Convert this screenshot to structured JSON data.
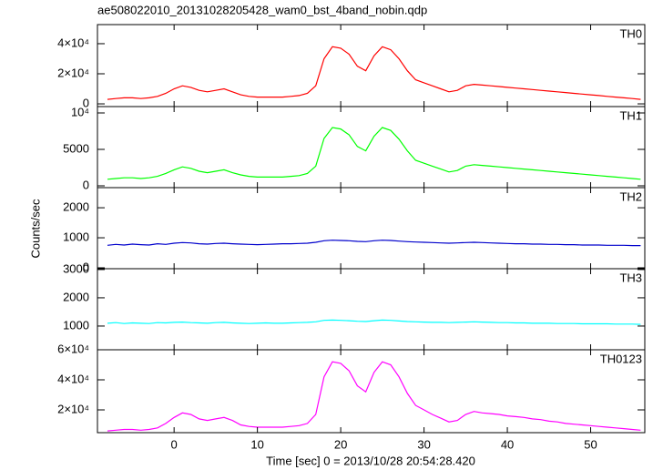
{
  "chart_data": {
    "type": "line",
    "title": "ae508022010_20131028205428_wam0_bst_4band_nobin.qdp",
    "xlabel": "Time [sec] 0 = 2013/10/28 20:54:28.420",
    "ylabel": "Counts/sec",
    "x": [
      -8,
      -7,
      -6,
      -5,
      -4,
      -3,
      -2,
      -1,
      0,
      1,
      2,
      3,
      4,
      5,
      6,
      7,
      8,
      9,
      10,
      11,
      12,
      13,
      14,
      15,
      16,
      17,
      18,
      19,
      20,
      21,
      22,
      23,
      24,
      25,
      26,
      27,
      28,
      29,
      30,
      31,
      32,
      33,
      34,
      35,
      36,
      37,
      38,
      39,
      40,
      41,
      42,
      43,
      44,
      45,
      46,
      47,
      48,
      49,
      50,
      51,
      52,
      53,
      54,
      55,
      56
    ],
    "xlim": [
      -9.2,
      56.5
    ],
    "xticks": [
      0,
      10,
      20,
      30,
      40,
      50
    ],
    "series": [
      {
        "name": "TH0",
        "color": "#ff0000",
        "values": [
          3000,
          3500,
          4000,
          4000,
          3500,
          4000,
          5000,
          7000,
          10000,
          12000,
          11000,
          9000,
          8000,
          9000,
          10000,
          8000,
          6000,
          5000,
          4500,
          4500,
          4500,
          4500,
          5000,
          5500,
          7000,
          12000,
          30000,
          38000,
          37000,
          33000,
          25000,
          22000,
          32000,
          38000,
          36000,
          30000,
          22000,
          16000,
          14000,
          12000,
          10000,
          8000,
          9000,
          12000,
          13000,
          12500,
          12000,
          11500,
          11000,
          10500,
          10000,
          9500,
          9000,
          8500,
          8000,
          7500,
          7000,
          6500,
          6000,
          5500,
          5000,
          4500,
          4000,
          3500,
          3000
        ],
        "ylim": [
          -1800,
          52700
        ],
        "yticks": [
          0,
          {
            "value": 20000,
            "label": "2×10⁴"
          },
          {
            "value": 40000,
            "label": "4×10⁴"
          }
        ]
      },
      {
        "name": "TH1",
        "color": "#00ff00",
        "values": [
          900,
          1000,
          1100,
          1100,
          1000,
          1100,
          1300,
          1700,
          2200,
          2600,
          2400,
          2000,
          1800,
          2000,
          2200,
          1800,
          1500,
          1300,
          1200,
          1200,
          1200,
          1200,
          1300,
          1400,
          1700,
          2700,
          6500,
          8000,
          7800,
          7000,
          5400,
          4800,
          6800,
          8000,
          7600,
          6400,
          4800,
          3500,
          3100,
          2700,
          2300,
          1900,
          2100,
          2700,
          2900,
          2800,
          2700,
          2600,
          2500,
          2400,
          2300,
          2200,
          2100,
          2000,
          1900,
          1800,
          1700,
          1600,
          1500,
          1400,
          1300,
          1200,
          1100,
          1000,
          900
        ],
        "ylim": [
          -250,
          10875
        ],
        "yticks": [
          0,
          5000,
          {
            "value": 10000,
            "label": "10⁴"
          }
        ]
      },
      {
        "name": "TH2",
        "color": "#0000cc",
        "values": [
          750,
          780,
          760,
          790,
          770,
          760,
          800,
          780,
          820,
          840,
          830,
          800,
          790,
          810,
          820,
          800,
          790,
          780,
          770,
          780,
          790,
          800,
          800,
          810,
          820,
          850,
          900,
          920,
          910,
          900,
          880,
          870,
          900,
          920,
          910,
          890,
          870,
          860,
          850,
          840,
          830,
          820,
          830,
          840,
          850,
          840,
          830,
          820,
          810,
          800,
          800,
          790,
          790,
          780,
          780,
          770,
          770,
          760,
          760,
          760,
          750,
          750,
          750,
          740,
          740
        ],
        "ylim": [
          -30,
          2670
        ],
        "yticks": [
          0,
          1000,
          2000
        ]
      },
      {
        "name": "TH3",
        "color": "#00ffff",
        "values": [
          1100,
          1120,
          1090,
          1110,
          1100,
          1090,
          1120,
          1110,
          1130,
          1140,
          1120,
          1110,
          1100,
          1120,
          1130,
          1110,
          1100,
          1090,
          1100,
          1110,
          1100,
          1100,
          1110,
          1120,
          1130,
          1150,
          1200,
          1210,
          1200,
          1190,
          1170,
          1160,
          1190,
          1210,
          1200,
          1180,
          1160,
          1150,
          1140,
          1130,
          1130,
          1120,
          1130,
          1140,
          1150,
          1140,
          1130,
          1120,
          1120,
          1110,
          1110,
          1100,
          1100,
          1100,
          1090,
          1090,
          1090,
          1080,
          1080,
          1080,
          1080,
          1070,
          1070,
          1070,
          1060
        ],
        "ylim": [
          160,
          3030
        ],
        "yticks": [
          1000,
          2000,
          3000
        ]
      },
      {
        "name": "TH0123",
        "color": "#ff00ff",
        "values": [
          6000,
          6500,
          7000,
          7000,
          6500,
          7000,
          8000,
          11000,
          15000,
          18000,
          17000,
          14000,
          13000,
          14000,
          15000,
          13000,
          10000,
          9000,
          8500,
          8500,
          8500,
          8500,
          9000,
          9500,
          11000,
          17000,
          42000,
          52000,
          51000,
          46000,
          36000,
          32000,
          45000,
          52000,
          50000,
          42000,
          31000,
          23000,
          20000,
          17000,
          14500,
          12000,
          13000,
          17000,
          19000,
          18000,
          17500,
          17000,
          16000,
          15500,
          15000,
          14000,
          13500,
          12500,
          12000,
          11000,
          10500,
          10000,
          9500,
          9000,
          8500,
          8000,
          7500,
          7000,
          6500
        ],
        "ylim": [
          4850,
          60000
        ],
        "yticks": [
          {
            "value": 20000,
            "label": "2×10⁴"
          },
          {
            "value": 40000,
            "label": "4×10⁴"
          },
          {
            "value": 60000,
            "label": "6×10⁴"
          }
        ]
      }
    ]
  }
}
